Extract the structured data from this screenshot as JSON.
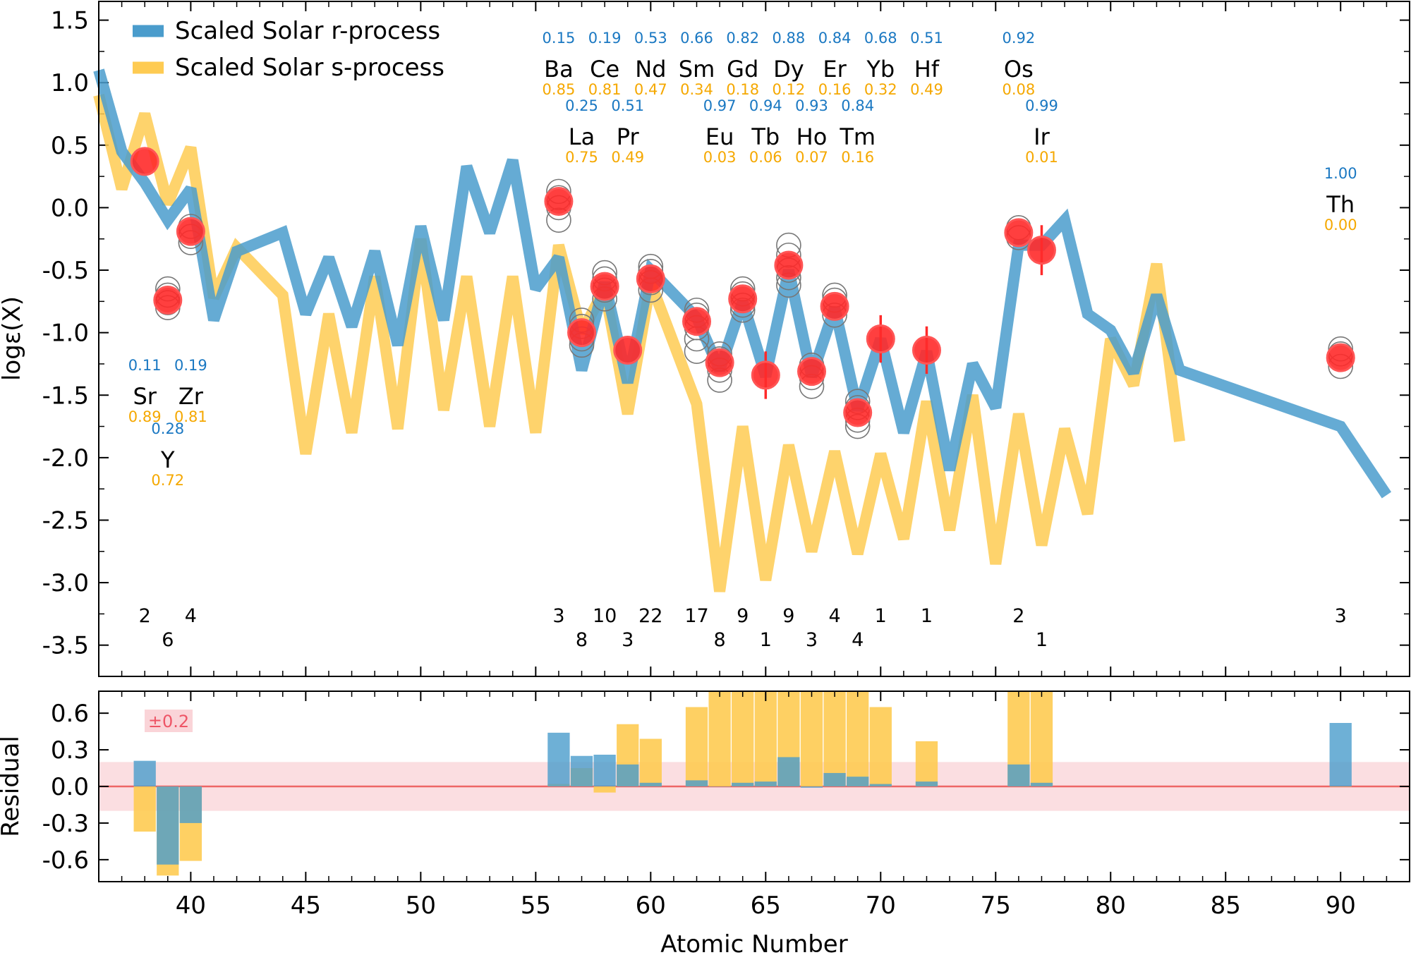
{
  "colors": {
    "r_process": "#4a9ccc",
    "s_process": "#fecb52",
    "overlap": "#3c8c8c",
    "star": "#ff2a2a",
    "model": "#777777",
    "band": "#f4a0a8",
    "zero_line": "#ee6666"
  },
  "chart_data": {
    "type": "line",
    "xlabel": "Atomic Number",
    "ylabel": "logε(X)",
    "xlim": [
      36,
      93
    ],
    "ylim": [
      -3.75,
      1.65
    ],
    "xticks": [
      40,
      45,
      50,
      55,
      60,
      65,
      70,
      75,
      80,
      85,
      90
    ],
    "yticks": [
      1.5,
      1.0,
      0.5,
      0.0,
      -0.5,
      -1.0,
      -1.5,
      -2.0,
      -2.5,
      -3.0,
      -3.5
    ],
    "ytick_labels": [
      "1.5",
      "1.0",
      "0.5",
      "0.0",
      "-0.5",
      "-1.0",
      "-1.5",
      "-2.0",
      "-2.5",
      "-3.0",
      "-3.5"
    ],
    "series": [
      {
        "name": "Scaled Solar r-process",
        "key": "r_process",
        "x": [
          36,
          37,
          38,
          39,
          40,
          41,
          42,
          44,
          45,
          46,
          47,
          48,
          49,
          50,
          51,
          52,
          53,
          54,
          55,
          56,
          57,
          58,
          59,
          60,
          62,
          63,
          64,
          65,
          66,
          67,
          68,
          69,
          70,
          71,
          72,
          73,
          74,
          75,
          76,
          77,
          78,
          79,
          80,
          81,
          82,
          83,
          90,
          92
        ],
        "y": [
          1.1,
          0.45,
          0.2,
          -0.1,
          0.15,
          -0.9,
          -0.35,
          -0.2,
          -0.85,
          -0.4,
          -0.95,
          -0.35,
          -1.1,
          -0.15,
          -0.9,
          0.33,
          -0.2,
          0.38,
          -0.65,
          -0.4,
          -1.3,
          -0.6,
          -1.4,
          -0.5,
          -0.88,
          -1.3,
          -0.75,
          -1.35,
          -0.5,
          -1.35,
          -0.8,
          -1.62,
          -1.05,
          -1.8,
          -1.15,
          -2.1,
          -1.25,
          -1.6,
          -0.3,
          -0.3,
          -0.1,
          -0.85,
          -0.98,
          -1.32,
          -0.7,
          -1.3,
          -1.75,
          -2.3
        ]
      },
      {
        "name": "Scaled Solar s-process",
        "key": "s_process",
        "x": [
          36,
          37,
          38,
          39,
          40,
          41,
          42,
          44,
          45,
          46,
          47,
          48,
          49,
          50,
          51,
          52,
          53,
          54,
          55,
          56,
          57,
          58,
          59,
          60,
          62,
          63,
          64,
          65,
          66,
          67,
          68,
          69,
          70,
          71,
          72,
          73,
          74,
          75,
          76,
          77,
          78,
          79,
          80,
          81,
          82,
          83
        ],
        "y": [
          0.9,
          0.15,
          0.75,
          0.03,
          0.48,
          -0.72,
          -0.32,
          -0.7,
          -1.97,
          -0.85,
          -1.8,
          -0.55,
          -1.77,
          -0.25,
          -1.62,
          -0.55,
          -1.75,
          -0.55,
          -1.8,
          -0.3,
          -1.0,
          -0.65,
          -1.65,
          -0.6,
          -1.57,
          -3.07,
          -1.75,
          -2.98,
          -1.9,
          -2.75,
          -1.95,
          -2.77,
          -1.97,
          -2.65,
          -1.55,
          -2.58,
          -1.5,
          -2.85,
          -1.65,
          -2.7,
          -1.77,
          -2.45,
          -1.05,
          -1.42,
          -0.45,
          -1.87
        ]
      }
    ],
    "star_points": [
      {
        "x": 38,
        "y": 0.37
      },
      {
        "x": 39,
        "y": -0.74
      },
      {
        "x": 40,
        "y": -0.19
      },
      {
        "x": 56,
        "y": 0.05
      },
      {
        "x": 57,
        "y": -1.0
      },
      {
        "x": 58,
        "y": -0.63
      },
      {
        "x": 59,
        "y": -1.14
      },
      {
        "x": 60,
        "y": -0.57
      },
      {
        "x": 62,
        "y": -0.91
      },
      {
        "x": 63,
        "y": -1.24
      },
      {
        "x": 64,
        "y": -0.73
      },
      {
        "x": 65,
        "y": -1.34,
        "err": 0.19
      },
      {
        "x": 66,
        "y": -0.46
      },
      {
        "x": 67,
        "y": -1.31
      },
      {
        "x": 68,
        "y": -0.79
      },
      {
        "x": 69,
        "y": -1.64
      },
      {
        "x": 70,
        "y": -1.05,
        "err": 0.19
      },
      {
        "x": 72,
        "y": -1.14,
        "err": 0.19
      },
      {
        "x": 76,
        "y": -0.2
      },
      {
        "x": 77,
        "y": -0.34,
        "err": 0.2
      },
      {
        "x": 90,
        "y": -1.2
      }
    ],
    "model_points": [
      {
        "x": 39,
        "ys": [
          -0.65,
          -0.7,
          -0.76,
          -0.8
        ]
      },
      {
        "x": 40,
        "ys": [
          -0.15,
          -0.23,
          -0.28
        ]
      },
      {
        "x": 56,
        "ys": [
          0.13,
          0.08,
          0.0,
          -0.1
        ]
      },
      {
        "x": 57,
        "ys": [
          -0.9,
          -0.95,
          -1.05,
          -1.1
        ]
      },
      {
        "x": 58,
        "ys": [
          -0.52,
          -0.57,
          -0.66,
          -0.73
        ]
      },
      {
        "x": 60,
        "ys": [
          -0.47,
          -0.51,
          -0.6,
          -0.66
        ]
      },
      {
        "x": 62,
        "ys": [
          -0.82,
          -0.86,
          -0.96,
          -1.05,
          -1.15
        ]
      },
      {
        "x": 63,
        "ys": [
          -1.17,
          -1.21,
          -1.3,
          -1.38
        ]
      },
      {
        "x": 64,
        "ys": [
          -0.65,
          -0.69,
          -0.78,
          -0.82
        ]
      },
      {
        "x": 66,
        "ys": [
          -0.3,
          -0.38,
          -0.5,
          -0.56,
          -0.62
        ]
      },
      {
        "x": 67,
        "ys": [
          -1.26,
          -1.36,
          -1.43
        ]
      },
      {
        "x": 68,
        "ys": [
          -0.7,
          -0.74,
          -0.86
        ]
      },
      {
        "x": 69,
        "ys": [
          -1.55,
          -1.6,
          -1.7,
          -1.75
        ]
      },
      {
        "x": 76,
        "ys": [
          -0.16,
          -0.24
        ]
      },
      {
        "x": 90,
        "ys": [
          -1.13,
          -1.17,
          -1.27
        ]
      }
    ],
    "element_labels": [
      {
        "symbol": "Ba",
        "x": 56,
        "r": "0.15",
        "s": "0.85",
        "row": 1
      },
      {
        "symbol": "Ce",
        "x": 58,
        "r": "0.19",
        "s": "0.81",
        "row": 1
      },
      {
        "symbol": "Nd",
        "x": 60,
        "r": "0.53",
        "s": "0.47",
        "row": 1
      },
      {
        "symbol": "Sm",
        "x": 62,
        "r": "0.66",
        "s": "0.34",
        "row": 1
      },
      {
        "symbol": "Gd",
        "x": 64,
        "r": "0.82",
        "s": "0.18",
        "row": 1
      },
      {
        "symbol": "Dy",
        "x": 66,
        "r": "0.88",
        "s": "0.12",
        "row": 1
      },
      {
        "symbol": "Er",
        "x": 68,
        "r": "0.84",
        "s": "0.16",
        "row": 1
      },
      {
        "symbol": "Yb",
        "x": 70,
        "r": "0.68",
        "s": "0.32",
        "row": 1
      },
      {
        "symbol": "Hf",
        "x": 72,
        "r": "0.51",
        "s": "0.49",
        "row": 1
      },
      {
        "symbol": "Os",
        "x": 76,
        "r": "0.92",
        "s": "0.08",
        "row": 1
      },
      {
        "symbol": "La",
        "x": 57,
        "r": "0.25",
        "s": "0.75",
        "row": 2
      },
      {
        "symbol": "Pr",
        "x": 59,
        "r": "0.51",
        "s": "0.49",
        "row": 2
      },
      {
        "symbol": "Eu",
        "x": 63,
        "r": "0.97",
        "s": "0.03",
        "row": 2
      },
      {
        "symbol": "Tb",
        "x": 65,
        "r": "0.94",
        "s": "0.06",
        "row": 2
      },
      {
        "symbol": "Ho",
        "x": 67,
        "r": "0.93",
        "s": "0.07",
        "row": 2
      },
      {
        "symbol": "Tm",
        "x": 69,
        "r": "0.84",
        "s": "0.16",
        "row": 2
      },
      {
        "symbol": "Ir",
        "x": 77,
        "r": "0.99",
        "s": "0.01",
        "row": 2
      },
      {
        "symbol": "Th",
        "x": 90,
        "r": "1.00",
        "s": "0.00",
        "row": 3
      },
      {
        "symbol": "Sr",
        "x": 38,
        "r": "0.11",
        "s": "0.89",
        "row": 4
      },
      {
        "symbol": "Zr",
        "x": 40,
        "r": "0.19",
        "s": "0.81",
        "row": 4
      },
      {
        "symbol": "Y",
        "x": 39,
        "r": "0.28",
        "s": "0.72",
        "row": 5
      }
    ],
    "line_counts": [
      {
        "x": 38,
        "n": "2",
        "row": 1
      },
      {
        "x": 40,
        "n": "4",
        "row": 1
      },
      {
        "x": 39,
        "n": "6",
        "row": 2
      },
      {
        "x": 56,
        "n": "3",
        "row": 1
      },
      {
        "x": 58,
        "n": "10",
        "row": 1
      },
      {
        "x": 60,
        "n": "22",
        "row": 1
      },
      {
        "x": 62,
        "n": "17",
        "row": 1
      },
      {
        "x": 64,
        "n": "9",
        "row": 1
      },
      {
        "x": 66,
        "n": "9",
        "row": 1
      },
      {
        "x": 68,
        "n": "4",
        "row": 1
      },
      {
        "x": 70,
        "n": "1",
        "row": 1
      },
      {
        "x": 72,
        "n": "1",
        "row": 1
      },
      {
        "x": 76,
        "n": "2",
        "row": 1
      },
      {
        "x": 90,
        "n": "3",
        "row": 1
      },
      {
        "x": 57,
        "n": "8",
        "row": 2
      },
      {
        "x": 59,
        "n": "3",
        "row": 2
      },
      {
        "x": 63,
        "n": "8",
        "row": 2
      },
      {
        "x": 65,
        "n": "1",
        "row": 2
      },
      {
        "x": 67,
        "n": "3",
        "row": 2
      },
      {
        "x": 69,
        "n": "4",
        "row": 2
      },
      {
        "x": 77,
        "n": "1",
        "row": 2
      }
    ],
    "residual": {
      "ylabel": "Residual",
      "ylim": [
        -0.78,
        0.78
      ],
      "yticks": [
        0.6,
        0.3,
        0.0,
        -0.3,
        -0.6
      ],
      "ytick_labels": [
        "0.6",
        "0.3",
        "0.0",
        "-0.3",
        "-0.6"
      ],
      "band": 0.2,
      "band_label": "±0.2",
      "x": [
        38,
        39,
        40,
        56,
        57,
        58,
        59,
        60,
        62,
        63,
        64,
        65,
        66,
        67,
        68,
        69,
        70,
        72,
        76,
        77,
        90
      ],
      "r": [
        0.21,
        -0.64,
        -0.3,
        0.44,
        0.25,
        0.26,
        0.18,
        0.03,
        0.05,
        0.0,
        0.03,
        0.04,
        0.24,
        -0.01,
        0.11,
        0.08,
        0.02,
        0.04,
        0.18,
        0.03,
        0.52
      ],
      "s": [
        -0.37,
        -0.73,
        -0.61,
        0.02,
        0.15,
        -0.05,
        0.51,
        0.39,
        0.65,
        0.78,
        0.78,
        0.78,
        0.78,
        0.78,
        0.78,
        0.78,
        0.65,
        0.37,
        0.78,
        0.78,
        0.0
      ]
    }
  }
}
